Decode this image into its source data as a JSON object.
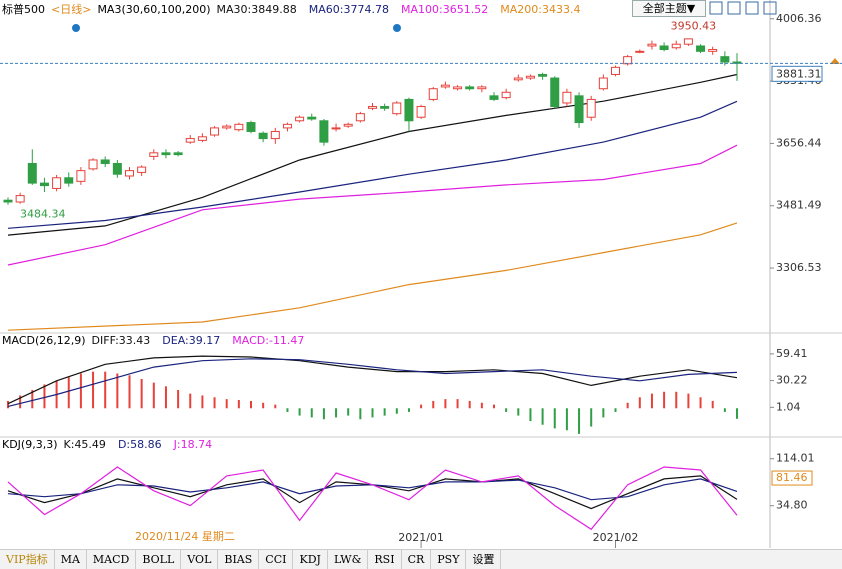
{
  "header": {
    "symbol": "标普500",
    "period": "<日线>",
    "ma_label": "MA3(30,60,100,200)",
    "theme_button": "全部主题▼",
    "cursor_date": "2020/11/24 星期二"
  },
  "tabs": [
    "VIP指标",
    "MA",
    "MACD",
    "BOLL",
    "VOL",
    "BIAS",
    "CCI",
    "KDJ",
    "LW&",
    "RSI",
    "CR",
    "PSY",
    "设置"
  ],
  "chart_data": [
    {
      "type": "candlestick",
      "up_color": "#e8413a",
      "down_color": "#2f9e44",
      "categories": [
        null,
        null,
        null,
        null,
        null,
        null,
        null,
        null,
        null,
        null,
        null,
        null,
        null,
        null,
        null,
        null,
        null,
        null,
        null,
        null,
        null,
        null,
        null,
        null,
        null,
        null,
        null,
        null,
        null,
        null,
        null,
        null,
        null,
        null,
        "2021/01",
        null,
        null,
        null,
        null,
        null,
        null,
        null,
        null,
        null,
        null,
        null,
        null,
        null,
        null,
        null,
        "2021/02",
        null,
        null,
        null,
        null,
        null,
        null,
        null,
        null,
        null,
        null
      ],
      "open": [
        3497,
        3492,
        3600,
        3545,
        3530,
        3560,
        3550,
        3585,
        3610,
        3600,
        3565,
        3575,
        3620,
        3630,
        3630,
        3660,
        3665,
        3680,
        3700,
        3695,
        3715,
        3685,
        3670,
        3700,
        3720,
        3730,
        3720,
        3700,
        3705,
        3720,
        3755,
        3760,
        3740,
        3780,
        3730,
        3780,
        3815,
        3810,
        3815,
        3810,
        3790,
        3785,
        3835,
        3840,
        3850,
        3840,
        3770,
        3790,
        3730,
        3810,
        3850,
        3880,
        3915,
        3930,
        3930,
        3925,
        3935,
        3930,
        3915,
        3900,
        3885
      ],
      "high": [
        3505,
        3518,
        3640,
        3560,
        3568,
        3575,
        3590,
        3615,
        3620,
        3610,
        3590,
        3595,
        3640,
        3640,
        3635,
        3680,
        3685,
        3705,
        3710,
        3715,
        3720,
        3690,
        3700,
        3715,
        3735,
        3740,
        3725,
        3712,
        3715,
        3745,
        3770,
        3768,
        3775,
        3785,
        3765,
        3815,
        3830,
        3820,
        3820,
        3820,
        3800,
        3810,
        3850,
        3850,
        3855,
        3845,
        3810,
        3800,
        3790,
        3850,
        3875,
        3905,
        3920,
        3945,
        3940,
        3945,
        3950.43,
        3935,
        3928,
        3915,
        3910
      ],
      "low": [
        3484.34,
        3487,
        3540,
        3520,
        3522,
        3535,
        3540,
        3580,
        3590,
        3560,
        3555,
        3565,
        3610,
        3615,
        3620,
        3655,
        3660,
        3675,
        3695,
        3690,
        3685,
        3660,
        3655,
        3690,
        3715,
        3720,
        3650,
        3690,
        3700,
        3715,
        3750,
        3748,
        3735,
        3690,
        3725,
        3775,
        3810,
        3805,
        3805,
        3800,
        3775,
        3780,
        3830,
        3835,
        3835,
        3755,
        3760,
        3700,
        3720,
        3805,
        3845,
        3875,
        3910,
        3920,
        3915,
        3920,
        3930,
        3910,
        3905,
        3875,
        3832
      ],
      "close": [
        3492,
        3510,
        3545,
        3538,
        3560,
        3545,
        3580,
        3610,
        3600,
        3570,
        3580,
        3590,
        3630,
        3625,
        3625,
        3670,
        3675,
        3700,
        3705,
        3710,
        3690,
        3670,
        3690,
        3710,
        3730,
        3725,
        3660,
        3700,
        3710,
        3740,
        3760,
        3755,
        3770,
        3720,
        3760,
        3810,
        3820,
        3815,
        3810,
        3815,
        3780,
        3800,
        3840,
        3845,
        3845,
        3760,
        3800,
        3715,
        3780,
        3840,
        3870,
        3900,
        3915,
        3935,
        3920,
        3935,
        3950,
        3915,
        3920,
        3885,
        3881.31
      ],
      "series": [
        {
          "name": "MA30",
          "color": "#111111",
          "x": [
            0,
            8,
            16,
            24,
            33,
            41,
            49,
            57,
            60
          ],
          "values": [
            3399,
            3425,
            3505,
            3610,
            3690,
            3735,
            3775,
            3828,
            3849.88
          ]
        },
        {
          "name": "MA60",
          "color": "#1a237e",
          "x": [
            0,
            8,
            16,
            24,
            33,
            41,
            49,
            57,
            60
          ],
          "values": [
            3418,
            3440,
            3478,
            3520,
            3570,
            3610,
            3660,
            3730,
            3774.78
          ]
        },
        {
          "name": "MA100",
          "color": "#e020e0",
          "x": [
            0,
            8,
            16,
            24,
            33,
            41,
            49,
            57,
            60
          ],
          "values": [
            3315,
            3372,
            3470,
            3500,
            3520,
            3540,
            3555,
            3600,
            3651.52
          ]
        },
        {
          "name": "MA200",
          "color": "#e08a1e",
          "x": [
            0,
            16,
            24,
            33,
            41,
            49,
            57,
            60
          ],
          "values": [
            3132,
            3155,
            3195,
            3260,
            3300,
            3350,
            3400,
            3433.4
          ]
        }
      ],
      "ylim": [
        3127,
        4031
      ],
      "yticks": [
        3306.53,
        3481.49,
        3656.44,
        3831.46,
        4006.36
      ]
    },
    {
      "type": "macd",
      "title": "MACD(26,12,9)",
      "series": [
        {
          "name": "DIFF",
          "color": "#111111",
          "x": [
            0,
            4,
            8,
            12,
            16,
            20,
            24,
            28,
            32,
            36,
            40,
            44,
            48,
            52,
            56,
            60
          ],
          "values": [
            5,
            30,
            48,
            55,
            57,
            56,
            52,
            45,
            40,
            40,
            42,
            38,
            25,
            35,
            42,
            33.43
          ]
        },
        {
          "name": "DEA",
          "color": "#1a237e",
          "x": [
            0,
            4,
            8,
            12,
            16,
            20,
            24,
            28,
            32,
            36,
            40,
            44,
            48,
            52,
            56,
            60
          ],
          "values": [
            2,
            15,
            30,
            45,
            52,
            54,
            53,
            48,
            42,
            38,
            40,
            42,
            35,
            30,
            37,
            39.17
          ]
        }
      ],
      "histogram": {
        "name": "MACD",
        "color": "#e020e0",
        "up_color": "#e8413a",
        "down_color": "#2f9e44",
        "values": [
          8,
          14,
          20,
          26,
          30,
          34,
          38,
          40,
          40,
          38,
          36,
          32,
          28,
          24,
          20,
          16,
          14,
          12,
          10,
          9,
          8,
          6,
          4,
          -4,
          -8,
          -10,
          -12,
          -10,
          -8,
          -12,
          -10,
          -8,
          -6,
          -4,
          4,
          8,
          10,
          10,
          8,
          6,
          4,
          -4,
          -8,
          -14,
          -18,
          -22,
          -24,
          -28,
          -20,
          -10,
          -4,
          6,
          12,
          16,
          18,
          18,
          16,
          12,
          8,
          -4,
          -11.47
        ]
      },
      "ylim": [
        -29.2,
        69.1
      ],
      "yticks": [
        1.04,
        30.22,
        59.41
      ]
    },
    {
      "type": "kdj",
      "title": "KDJ(9,3,3)",
      "series": [
        {
          "name": "K",
          "color": "#111111",
          "x": [
            0,
            3,
            6,
            9,
            12,
            15,
            18,
            21,
            24,
            27,
            30,
            33,
            36,
            39,
            42,
            45,
            48,
            51,
            54,
            57,
            60
          ],
          "values": [
            60,
            40,
            55,
            80,
            65,
            50,
            70,
            80,
            40,
            75,
            70,
            60,
            80,
            75,
            80,
            55,
            30,
            55,
            80,
            85,
            45.49
          ]
        },
        {
          "name": "D",
          "color": "#1a237e",
          "x": [
            0,
            3,
            6,
            9,
            12,
            15,
            18,
            21,
            24,
            27,
            30,
            33,
            36,
            39,
            42,
            45,
            48,
            51,
            54,
            57,
            60
          ],
          "values": [
            55,
            50,
            55,
            70,
            68,
            58,
            65,
            75,
            55,
            68,
            70,
            65,
            75,
            75,
            78,
            65,
            45,
            50,
            70,
            80,
            58.86
          ]
        },
        {
          "name": "J",
          "color": "#e020e0",
          "x": [
            0,
            3,
            6,
            9,
            12,
            15,
            18,
            21,
            24,
            27,
            30,
            33,
            36,
            39,
            42,
            45,
            48,
            51,
            54,
            57,
            60
          ],
          "values": [
            75,
            20,
            55,
            100,
            60,
            35,
            85,
            95,
            10,
            90,
            70,
            45,
            95,
            75,
            85,
            35,
            -5,
            70,
            100,
            95,
            18.74
          ]
        }
      ],
      "marker": 81.46,
      "ylim": [
        -23,
        133.8
      ],
      "yticks": [
        {
          "value": 34.8,
          "label": "34.80"
        },
        114.01
      ]
    }
  ]
}
